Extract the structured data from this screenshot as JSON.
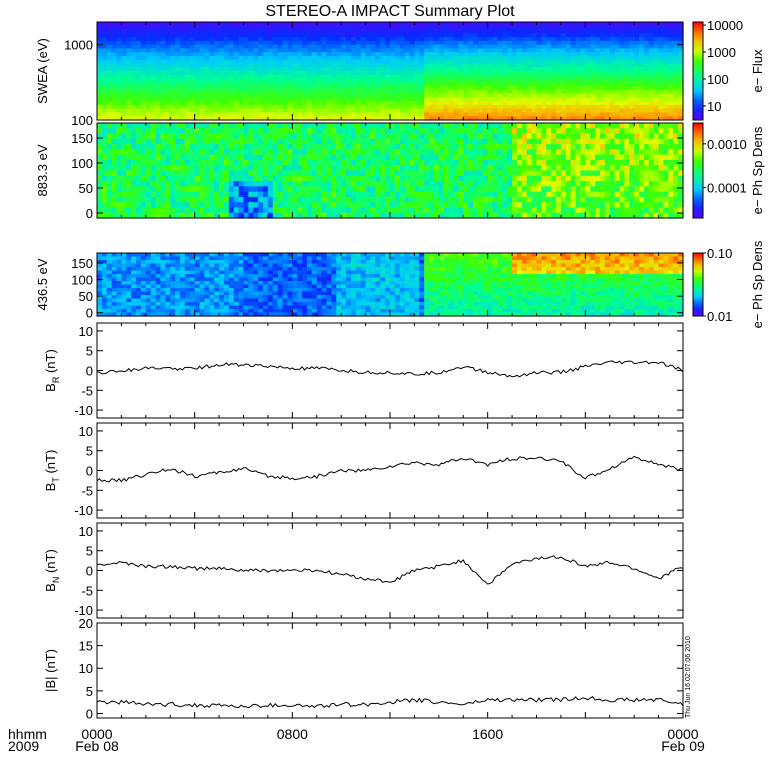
{
  "title": "STEREO-A IMPACT Summary Plot",
  "footer": {
    "hhmm": "hhmm",
    "year": "2009",
    "stamp": "Thu Jun 16 02:07:06 2010"
  },
  "time_axis": {
    "ticks": [
      {
        "hour": 0,
        "label": "0000",
        "date": "Feb 08"
      },
      {
        "hour": 8,
        "label": "0800",
        "date": ""
      },
      {
        "hour": 16,
        "label": "1600",
        "date": ""
      },
      {
        "hour": 24,
        "label": "0000",
        "date": "Feb 09"
      }
    ]
  },
  "chart_data": [
    {
      "type": "heatmap",
      "id": "swea",
      "ylabel": "SWEA (eV)",
      "yscale": "log",
      "ylim": [
        100,
        2000
      ],
      "yticks": [
        {
          "v": 100,
          "label": "100"
        },
        {
          "v": 1000,
          "label": "1000"
        }
      ],
      "colorbar": {
        "label": "e− Flux",
        "scale": "log",
        "range": [
          3,
          13000
        ],
        "ticks": [
          {
            "v": 10,
            "label": "10"
          },
          {
            "v": 100,
            "label": "100"
          },
          {
            "v": 1000,
            "label": "1000"
          },
          {
            "v": 10000,
            "label": "10000"
          }
        ]
      }
    },
    {
      "type": "heatmap",
      "id": "pad883",
      "ylabel": "883.3 eV",
      "ylim": [
        -10,
        180
      ],
      "yticks": [
        {
          "v": 0,
          "label": "0"
        },
        {
          "v": 50,
          "label": "50"
        },
        {
          "v": 100,
          "label": "100"
        },
        {
          "v": 150,
          "label": "150"
        }
      ],
      "colorbar": {
        "label": "e− Ph Sp Dens",
        "scale": "log",
        "range": [
          2e-05,
          0.003
        ],
        "ticks": [
          {
            "v": 0.0001,
            "label": "0.0001"
          },
          {
            "v": 0.001,
            "label": "0.0010"
          }
        ]
      }
    },
    {
      "type": "heatmap",
      "id": "pad436",
      "ylabel": "436.5 eV",
      "ylim": [
        -10,
        180
      ],
      "yticks": [
        {
          "v": 0,
          "label": "0"
        },
        {
          "v": 50,
          "label": "50"
        },
        {
          "v": 100,
          "label": "100"
        },
        {
          "v": 150,
          "label": "150"
        }
      ],
      "colorbar": {
        "label": "e− Ph Sp Dens",
        "scale": "log",
        "range": [
          0.01,
          0.1
        ],
        "ticks": [
          {
            "v": 0.01,
            "label": "0.01"
          },
          {
            "v": 0.1,
            "label": "0.10"
          }
        ]
      }
    },
    {
      "type": "line",
      "id": "br",
      "ylabel_main": "B",
      "ylabel_sub": "R",
      "ylabel_unit": " (nT)",
      "ylim": [
        -12,
        12
      ],
      "yticks": [
        {
          "v": -10,
          "label": "-10"
        },
        {
          "v": -5,
          "label": "-5"
        },
        {
          "v": 0,
          "label": "0"
        },
        {
          "v": 5,
          "label": "5"
        },
        {
          "v": 10,
          "label": "10"
        }
      ],
      "x": [
        0,
        1,
        2,
        3,
        4,
        5,
        6,
        7,
        8,
        9,
        10,
        11,
        12,
        13,
        14,
        15,
        16,
        17,
        18,
        19,
        20,
        21,
        22,
        23,
        24
      ],
      "y": [
        -0.5,
        0,
        0.5,
        0.5,
        0.5,
        1.5,
        1.5,
        1,
        0.5,
        0.5,
        0,
        -0.5,
        -0.5,
        -1,
        -0.5,
        1,
        -0.5,
        -1.5,
        -0.5,
        -0.5,
        1,
        2,
        2,
        2,
        0
      ]
    },
    {
      "type": "line",
      "id": "bt",
      "ylabel_main": "B",
      "ylabel_sub": "T",
      "ylabel_unit": " (nT)",
      "ylim": [
        -12,
        12
      ],
      "yticks": [
        {
          "v": -10,
          "label": "-10"
        },
        {
          "v": -5,
          "label": "-5"
        },
        {
          "v": 0,
          "label": "0"
        },
        {
          "v": 5,
          "label": "5"
        },
        {
          "v": 10,
          "label": "10"
        }
      ],
      "x": [
        0,
        1,
        2,
        3,
        4,
        5,
        6,
        7,
        8,
        9,
        10,
        11,
        12,
        13,
        14,
        15,
        16,
        17,
        18,
        19,
        20,
        21,
        22,
        23,
        24
      ],
      "y": [
        -2.5,
        -2.5,
        -1,
        0.5,
        -1.5,
        -0.5,
        0.5,
        -1.5,
        -2,
        -1.5,
        0,
        0,
        1,
        2,
        1.5,
        3,
        1.5,
        3,
        3,
        2.5,
        -2,
        0.5,
        3.5,
        1.5,
        0
      ]
    },
    {
      "type": "line",
      "id": "bn",
      "ylabel_main": "B",
      "ylabel_sub": "N",
      "ylabel_unit": " (nT)",
      "ylim": [
        -12,
        12
      ],
      "yticks": [
        {
          "v": -10,
          "label": "-10"
        },
        {
          "v": -5,
          "label": "-5"
        },
        {
          "v": 0,
          "label": "0"
        },
        {
          "v": 5,
          "label": "5"
        },
        {
          "v": 10,
          "label": "10"
        }
      ],
      "x": [
        0,
        1,
        2,
        3,
        4,
        5,
        6,
        7,
        8,
        9,
        10,
        11,
        12,
        13,
        14,
        15,
        16,
        17,
        18,
        19,
        20,
        21,
        22,
        23,
        24
      ],
      "y": [
        1.5,
        2,
        1,
        1,
        0.5,
        0.5,
        0,
        0,
        0,
        0,
        -1,
        -2,
        -3,
        0,
        1,
        2.5,
        -3.5,
        1.5,
        3,
        3.5,
        1,
        2,
        0.5,
        -2,
        1
      ]
    },
    {
      "type": "line",
      "id": "bmag",
      "ylabel_main": "|B|",
      "ylabel_sub": "",
      "ylabel_unit": " (nT)",
      "ylim": [
        -1,
        20
      ],
      "yticks": [
        {
          "v": 0,
          "label": "0"
        },
        {
          "v": 5,
          "label": "5"
        },
        {
          "v": 10,
          "label": "10"
        },
        {
          "v": 15,
          "label": "15"
        },
        {
          "v": 20,
          "label": "20"
        }
      ],
      "x": [
        0,
        1,
        2,
        3,
        4,
        5,
        6,
        7,
        8,
        9,
        10,
        11,
        12,
        13,
        14,
        15,
        16,
        17,
        18,
        19,
        20,
        21,
        22,
        23,
        24
      ],
      "y": [
        2.5,
        2.5,
        2,
        2,
        1.8,
        1.8,
        1.5,
        1.8,
        1.8,
        1.5,
        2,
        2,
        2.5,
        3,
        2.5,
        2,
        3,
        3,
        3,
        3,
        3.5,
        3,
        3,
        3,
        2
      ]
    }
  ]
}
